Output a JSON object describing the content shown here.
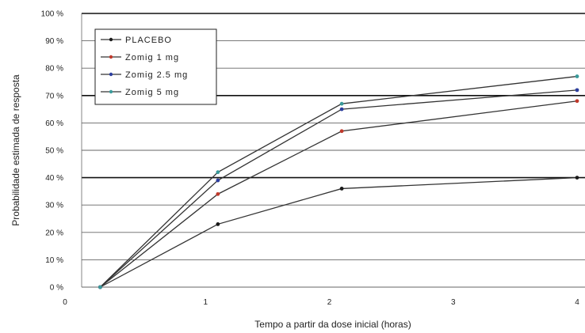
{
  "chart_data": {
    "type": "line",
    "title": "",
    "xlabel": "Tempo a partir da dose inicial (horas)",
    "ylabel": "Probabilidade estimada de resposta",
    "xlim": [
      0,
      4
    ],
    "ylim": [
      0,
      100
    ],
    "x_ticks": [
      "0",
      "1",
      "2",
      "3",
      "4"
    ],
    "y_ticks": [
      "0 %",
      "10 %",
      "20 %",
      "30 %",
      "40 %",
      "50 %",
      "60 %",
      "70 %",
      "80 %",
      "90 %",
      "100 %"
    ],
    "grid": "horizontal",
    "legend_position": "top-left",
    "series": [
      {
        "name": "PLACEBO",
        "color": "#1a1a1a",
        "x": [
          0.15,
          1.1,
          2.1,
          4
        ],
        "y": [
          0,
          23,
          36,
          40
        ]
      },
      {
        "name": "Zomig 1 mg",
        "color": "#c0392b",
        "x": [
          0.15,
          1.1,
          2.1,
          4
        ],
        "y": [
          0,
          34,
          57,
          68
        ]
      },
      {
        "name": "Zomig 2.5 mg",
        "color": "#2c3e9e",
        "x": [
          0.15,
          1.1,
          2.1,
          4
        ],
        "y": [
          0,
          39,
          65,
          72
        ]
      },
      {
        "name": "Zomig 5 mg",
        "color": "#3a9a9a",
        "x": [
          0.15,
          1.1,
          2.1,
          4
        ],
        "y": [
          0,
          42,
          67,
          77
        ]
      }
    ],
    "legend_labels": [
      "PLACEBO",
      "Zomig 1 mg",
      "Zomig 2.5 mg",
      "Zomig 5 mg"
    ]
  }
}
